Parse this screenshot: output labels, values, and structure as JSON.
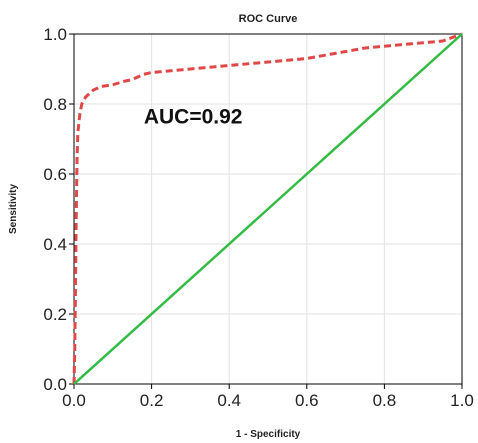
{
  "chart_data": {
    "type": "line",
    "title": "ROC Curve",
    "xlabel": "1 - Specificity",
    "ylabel": "Sensitivity",
    "xlim": [
      0.0,
      1.0
    ],
    "ylim": [
      0.0,
      1.0
    ],
    "x_ticks": [
      "0.0",
      "0.2",
      "0.4",
      "0.6",
      "0.8",
      "1.0"
    ],
    "y_ticks": [
      "0.0",
      "0.2",
      "0.4",
      "0.6",
      "0.8",
      "1.0"
    ],
    "grid": true,
    "legend": "none",
    "annotation": "AUC=0.92",
    "series": [
      {
        "style": "dashed",
        "color": "#e04848",
        "x": [
          0.0,
          0.002,
          0.004,
          0.006,
          0.008,
          0.01,
          0.015,
          0.02,
          0.03,
          0.05,
          0.07,
          0.1,
          0.13,
          0.15,
          0.18,
          0.2,
          0.25,
          0.3,
          0.35,
          0.4,
          0.5,
          0.55,
          0.6,
          0.65,
          0.7,
          0.75,
          0.8,
          0.85,
          0.9,
          0.95,
          1.0
        ],
        "y": [
          0.0,
          0.1,
          0.3,
          0.5,
          0.65,
          0.72,
          0.77,
          0.8,
          0.82,
          0.84,
          0.85,
          0.855,
          0.865,
          0.87,
          0.885,
          0.89,
          0.895,
          0.9,
          0.905,
          0.91,
          0.92,
          0.925,
          0.93,
          0.94,
          0.95,
          0.96,
          0.965,
          0.97,
          0.975,
          0.98,
          1.0
        ]
      },
      {
        "style": "solid",
        "color": "#33bb44",
        "x": [
          0.0,
          1.0
        ],
        "y": [
          0.0,
          1.0
        ]
      }
    ]
  }
}
